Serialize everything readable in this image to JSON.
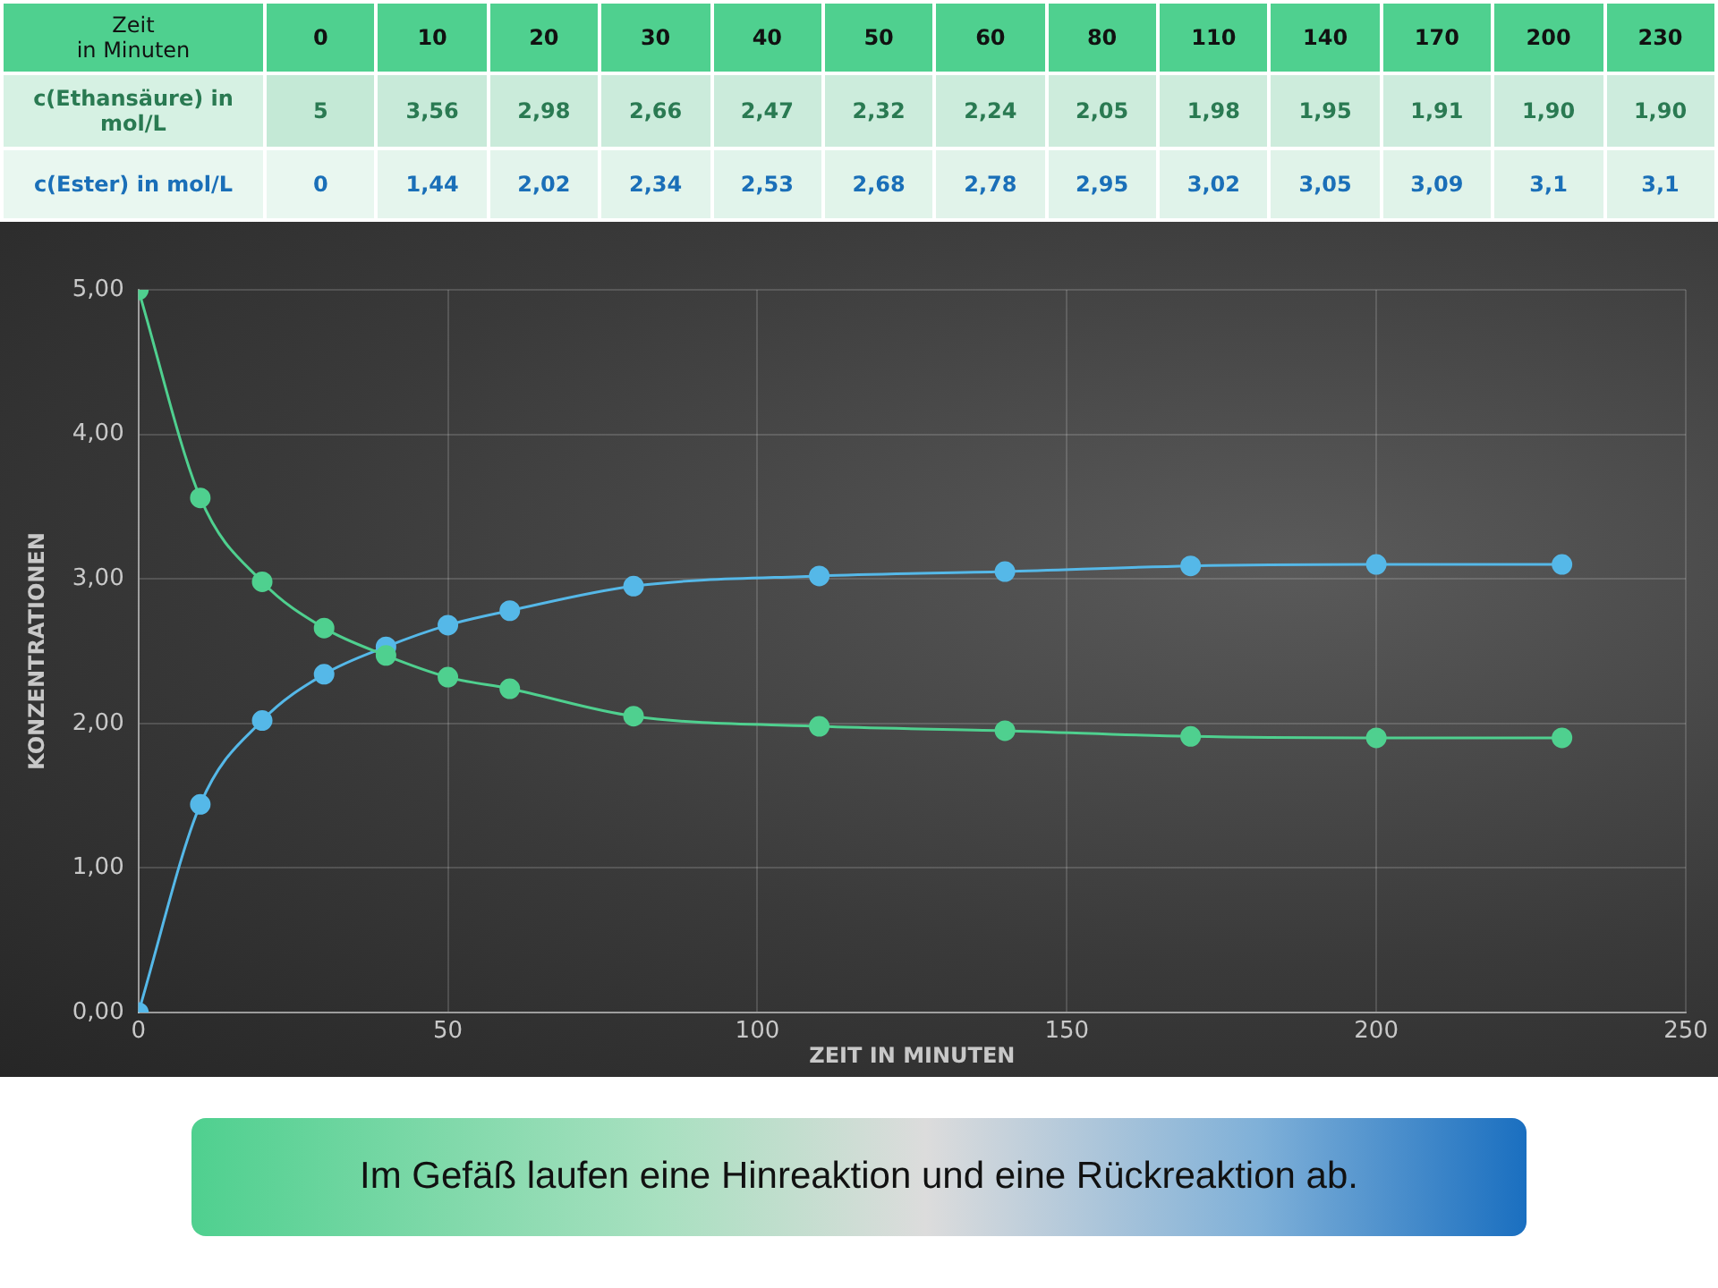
{
  "chart_data": [
    {
      "type": "heatmap",
      "xlabel": "Zeit\nin Minuten",
      "categories": [
        "0",
        "10",
        "20",
        "30",
        "40",
        "50",
        "60",
        "80",
        "110",
        "140",
        "170",
        "200",
        "230"
      ],
      "y_categories": [
        "c(Ethansäure) in mol/L",
        "c(Ester) in mol/L"
      ],
      "cells": [
        [
          5,
          3.56,
          2.98,
          2.66,
          2.47,
          2.32,
          2.24,
          2.05,
          1.98,
          1.95,
          1.91,
          1.9,
          1.9
        ],
        [
          0,
          1.44,
          2.02,
          2.34,
          2.53,
          2.68,
          2.78,
          2.95,
          3.02,
          3.05,
          3.09,
          3.1,
          3.1
        ]
      ],
      "cell_labels": [
        [
          "5",
          "3,56",
          "2,98",
          "2,66",
          "2,47",
          "2,32",
          "2,24",
          "2,05",
          "1,98",
          "1,95",
          "1,91",
          "1,90",
          "1,90"
        ],
        [
          "0",
          "1,44",
          "2,02",
          "2,34",
          "2,53",
          "2,68",
          "2,78",
          "2,95",
          "3,02",
          "3,05",
          "3,09",
          "3,1",
          "3,1"
        ]
      ]
    },
    {
      "type": "line",
      "xlabel": "ZEIT IN MINUTEN",
      "ylabel": "KONZENTRATIONEN",
      "annotations": [
        "Im Gefäß laufen eine Hinreaktion und eine Rückreaktion ab."
      ],
      "x": [
        0,
        10,
        20,
        30,
        40,
        50,
        60,
        80,
        110,
        140,
        170,
        200,
        230
      ],
      "series": [
        {
          "color": "#4fd08f",
          "values": [
            5,
            3.56,
            2.98,
            2.66,
            2.47,
            2.32,
            2.24,
            2.05,
            1.98,
            1.95,
            1.91,
            1.9,
            1.9
          ]
        },
        {
          "color": "#55b8e8",
          "values": [
            0,
            1.44,
            2.02,
            2.34,
            2.53,
            2.68,
            2.78,
            2.95,
            3.02,
            3.05,
            3.09,
            3.1,
            3.1
          ]
        }
      ],
      "xlim": [
        0,
        250
      ],
      "xticks": [
        0,
        50,
        100,
        150,
        200,
        250
      ],
      "ylim": [
        0,
        5
      ],
      "yticks": [
        {
          "value": 0,
          "label": "0,00"
        },
        {
          "value": 1,
          "label": "1,00"
        },
        {
          "value": 2,
          "label": "2,00"
        },
        {
          "value": 3,
          "label": "3,00"
        },
        {
          "value": 4,
          "label": "4,00"
        },
        {
          "value": 5,
          "label": "5,00"
        }
      ],
      "grid": true,
      "legend": false,
      "marker": "circle",
      "line_style": "solid"
    }
  ]
}
